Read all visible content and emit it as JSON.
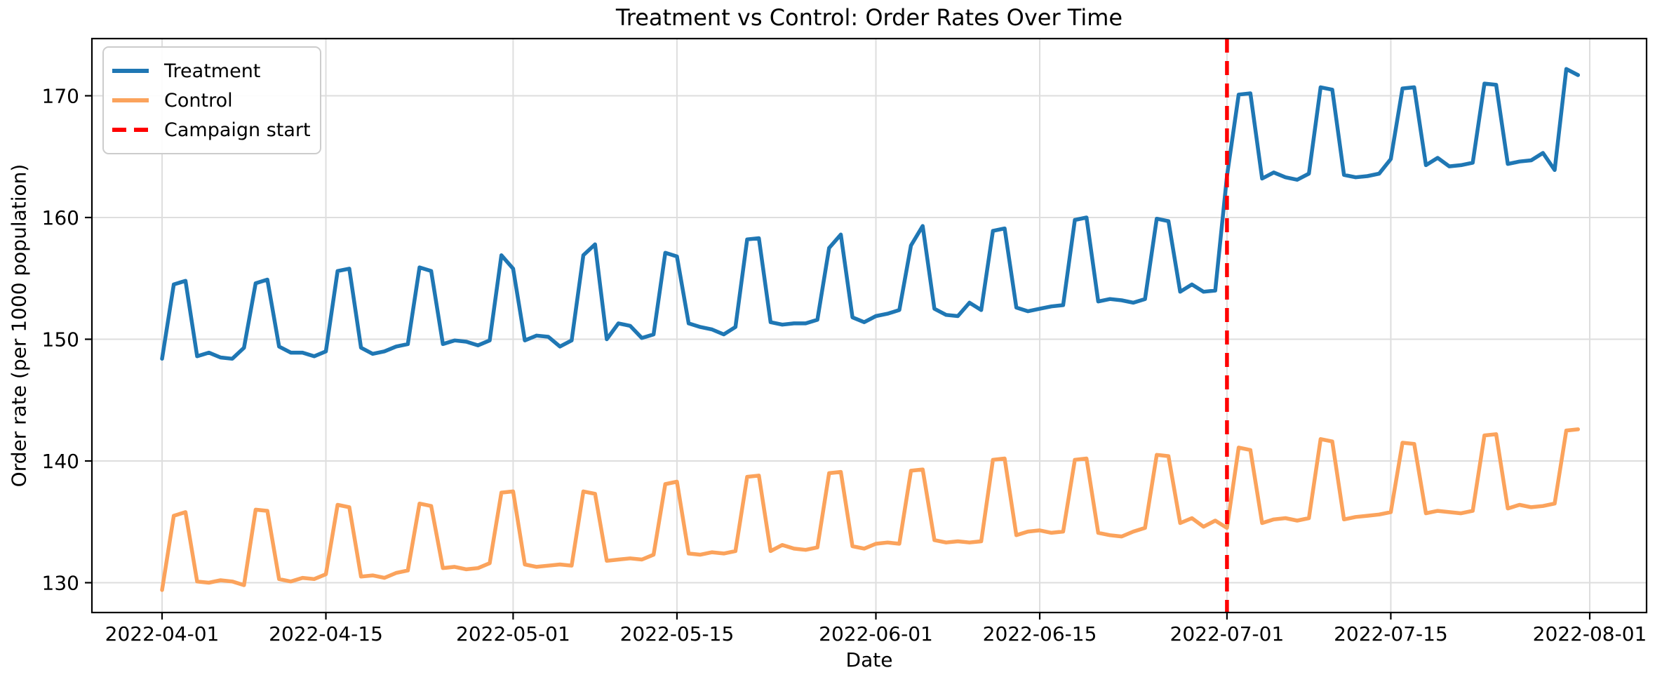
{
  "chart_data": {
    "type": "line",
    "title": "Treatment vs Control: Order Rates Over Time",
    "xlabel": "Date",
    "ylabel": "Order rate (per 1000 population)",
    "x_start_date": "2022-04-01",
    "x_end_date": "2022-07-31",
    "frequency": "daily",
    "grid": true,
    "legend_position": "upper left",
    "ylim": [
      127.5,
      174.7
    ],
    "y_ticks": [
      130,
      140,
      150,
      160,
      170
    ],
    "x_ticks": [
      {
        "label": "2022-04-01",
        "day": 0
      },
      {
        "label": "2022-04-15",
        "day": 14
      },
      {
        "label": "2022-05-01",
        "day": 30
      },
      {
        "label": "2022-05-15",
        "day": 44
      },
      {
        "label": "2022-06-01",
        "day": 61
      },
      {
        "label": "2022-06-15",
        "day": 75
      },
      {
        "label": "2022-07-01",
        "day": 91
      },
      {
        "label": "2022-07-15",
        "day": 105
      },
      {
        "label": "2022-08-01",
        "day": 122
      }
    ],
    "campaign_line": {
      "label": "Campaign start",
      "date": "2022-07-01",
      "day": 91,
      "color": "#ff0000",
      "style": "dashed"
    },
    "series": [
      {
        "name": "Treatment",
        "color": "#1f77b4",
        "values": [
          148.4,
          154.5,
          154.8,
          148.6,
          148.9,
          148.5,
          148.4,
          149.3,
          154.6,
          154.9,
          149.4,
          148.9,
          148.9,
          148.6,
          149.0,
          155.6,
          155.8,
          149.3,
          148.8,
          149.0,
          149.4,
          149.6,
          155.9,
          155.6,
          149.6,
          149.9,
          149.8,
          149.5,
          149.9,
          156.9,
          155.8,
          149.9,
          150.3,
          150.2,
          149.4,
          149.9,
          156.9,
          157.8,
          150.0,
          151.3,
          151.1,
          150.1,
          150.4,
          157.1,
          156.8,
          151.3,
          151.0,
          150.8,
          150.4,
          151.0,
          158.2,
          158.3,
          151.4,
          151.2,
          151.3,
          151.3,
          151.6,
          157.5,
          158.6,
          151.8,
          151.4,
          151.9,
          152.1,
          152.4,
          157.7,
          159.3,
          152.5,
          152.0,
          151.9,
          153.0,
          152.4,
          158.9,
          159.1,
          152.6,
          152.3,
          152.5,
          152.7,
          152.8,
          159.8,
          160.0,
          153.1,
          153.3,
          153.2,
          153.0,
          153.3,
          159.9,
          159.7,
          153.9,
          154.5,
          153.9,
          154.0,
          163.4,
          170.1,
          170.2,
          163.2,
          163.7,
          163.3,
          163.1,
          163.6,
          170.7,
          170.5,
          163.5,
          163.3,
          163.4,
          163.6,
          164.8,
          170.6,
          170.7,
          164.3,
          164.9,
          164.2,
          164.3,
          164.5,
          171.0,
          170.9,
          164.4,
          164.6,
          164.7,
          165.3,
          163.9,
          172.2,
          171.7
        ]
      },
      {
        "name": "Control",
        "color": "#fba35c",
        "values": [
          129.4,
          135.5,
          135.8,
          130.1,
          130.0,
          130.2,
          130.1,
          129.8,
          136.0,
          135.9,
          130.3,
          130.1,
          130.4,
          130.3,
          130.7,
          136.4,
          136.2,
          130.5,
          130.6,
          130.4,
          130.8,
          131.0,
          136.5,
          136.3,
          131.2,
          131.3,
          131.1,
          131.2,
          131.6,
          137.4,
          137.5,
          131.5,
          131.3,
          131.4,
          131.5,
          131.4,
          137.5,
          137.3,
          131.8,
          131.9,
          132.0,
          131.9,
          132.3,
          138.1,
          138.3,
          132.4,
          132.3,
          132.5,
          132.4,
          132.6,
          138.7,
          138.8,
          132.6,
          133.1,
          132.8,
          132.7,
          132.9,
          139.0,
          139.1,
          133.0,
          132.8,
          133.2,
          133.3,
          133.2,
          139.2,
          139.3,
          133.5,
          133.3,
          133.4,
          133.3,
          133.4,
          140.1,
          140.2,
          133.9,
          134.2,
          134.3,
          134.1,
          134.2,
          140.1,
          140.2,
          134.1,
          133.9,
          133.8,
          134.2,
          134.5,
          140.5,
          140.4,
          134.9,
          135.3,
          134.6,
          135.1,
          134.5,
          141.1,
          140.9,
          134.9,
          135.2,
          135.3,
          135.1,
          135.3,
          141.8,
          141.6,
          135.2,
          135.4,
          135.5,
          135.6,
          135.8,
          141.5,
          141.4,
          135.7,
          135.9,
          135.8,
          135.7,
          135.9,
          142.1,
          142.2,
          136.1,
          136.4,
          136.2,
          136.3,
          136.5,
          142.5,
          142.6
        ]
      }
    ]
  }
}
